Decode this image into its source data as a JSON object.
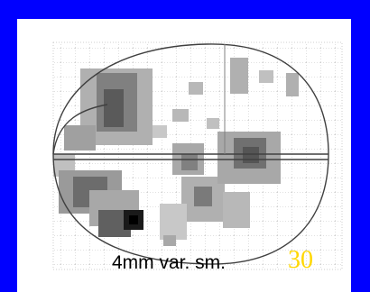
{
  "slide": {
    "caption": "4mm var. sm.",
    "slide_number": "30"
  },
  "colors": {
    "background": "#0000ff",
    "panel": "#ffffff",
    "grid": "#b0b0b0",
    "outline": "#404040",
    "activation_dark": "#1a1a1a",
    "activation_mid": "#707070",
    "activation_light": "#a8a8a8",
    "slide_number": "#ffd700"
  },
  "icons": {
    "brain_map": "glass-brain-icon"
  }
}
